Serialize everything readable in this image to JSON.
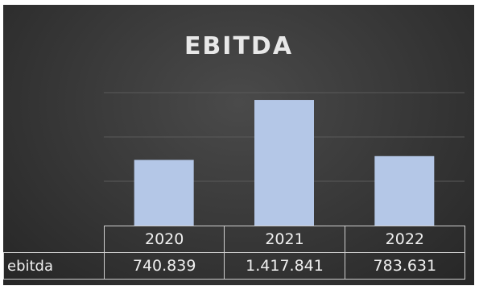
{
  "chart_data": {
    "type": "bar",
    "title": "EBITDA",
    "categories": [
      "2020",
      "2021",
      "2022"
    ],
    "series": [
      {
        "name": "ebitda",
        "values": [
          740.839,
          1417.841,
          783.631
        ]
      }
    ],
    "value_labels": [
      "740.839",
      "1.417.841",
      "783.631"
    ],
    "ylim": [
      0,
      1500
    ],
    "grid": true,
    "legend": "none",
    "data_table": true,
    "colors": {
      "bar": "#b4c7e7",
      "background": "#3a3a3a",
      "gridline": "#5a5a5a",
      "table_border": "#cfcfcf",
      "text": "#f0f0f0"
    }
  }
}
